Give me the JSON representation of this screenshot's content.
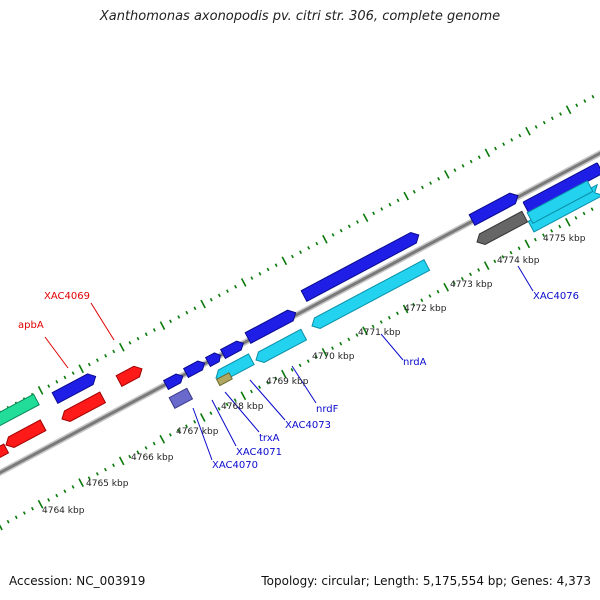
{
  "title": "Xanthomonas axonopodis pv. citri str. 306, complete genome",
  "footer": {
    "accession": "Accession: NC_003919",
    "topology": "Topology: circular; Length: 5,175,554 bp; Genes: 4,373"
  },
  "colors": {
    "forward_gene": "#1e1ee6",
    "reverse_gene": "#22d2ee",
    "rna_forward": "#ff1a1a",
    "rna_reverse": "#22dd99",
    "other": "#6a6acc",
    "grey_feature": "#666666",
    "mixed_feature": "#b0a860",
    "gc_ticks": "#0a7a0a",
    "backbone": "#808080",
    "forward_label": "#0a0acc",
    "rna_label": "#e00000"
  },
  "kbp_labels": [
    "4764 kbp",
    "4765 kbp",
    "4766 kbp",
    "4767 kbp",
    "4768 kbp",
    "4769 kbp",
    "4770 kbp",
    "4771 kbp",
    "4772 kbp",
    "4773 kbp",
    "4774 kbp",
    "4775 kbp"
  ],
  "gene_labels": {
    "apbA": "apbA",
    "XAC4069": "XAC4069",
    "XAC4070": "XAC4070",
    "XAC4071": "XAC4071",
    "trxA": "trxA",
    "XAC4073": "XAC4073",
    "nrdF": "nrdF",
    "nrdA": "nrdA",
    "XAC4076": "XAC4076"
  }
}
